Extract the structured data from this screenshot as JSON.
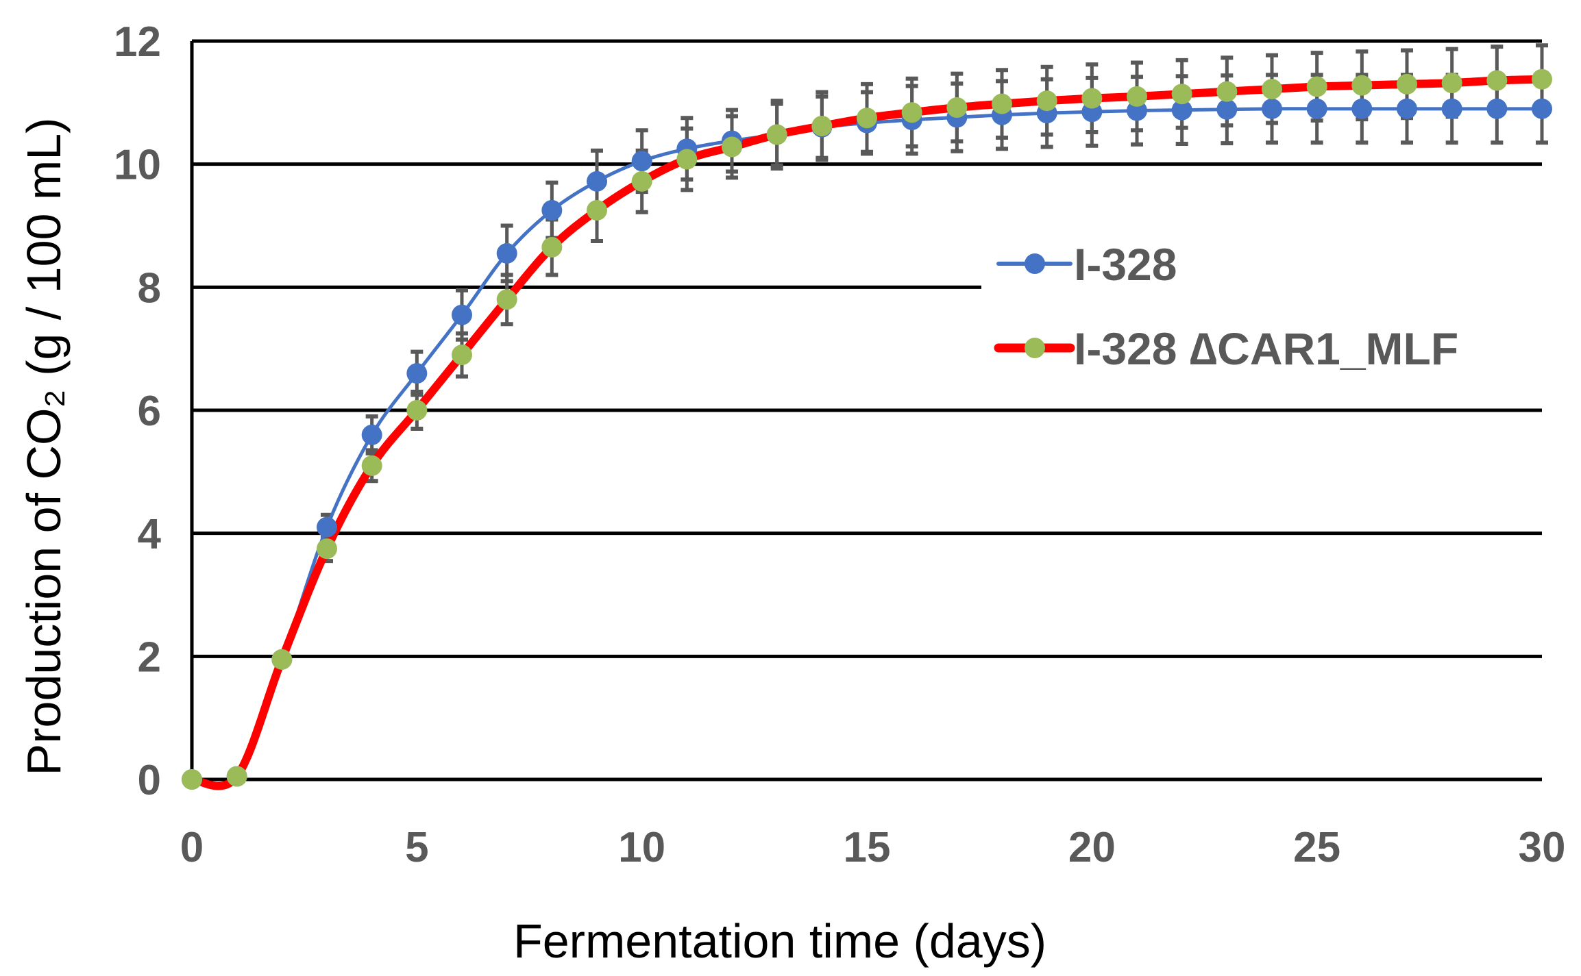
{
  "chart_data": {
    "type": "line",
    "title": "",
    "xlabel": "Fermentation time (days)",
    "ylabel": "Production of CO₂ (g / 100 mL)",
    "xlim": [
      0,
      30
    ],
    "ylim": [
      0,
      12
    ],
    "xticks": [
      0,
      5,
      10,
      15,
      20,
      25,
      30
    ],
    "yticks": [
      0,
      2,
      4,
      6,
      8,
      10,
      12
    ],
    "xtick_labels": [
      "0",
      "5",
      "10",
      "15",
      "20",
      "25",
      "30"
    ],
    "ytick_labels": [
      "0",
      "2",
      "4",
      "6",
      "8",
      "10",
      "12"
    ],
    "grid": "horizontal",
    "legend_position": "center-right",
    "x": [
      0,
      1,
      2,
      3,
      4,
      5,
      6,
      7,
      8,
      9,
      10,
      11,
      12,
      13,
      14,
      15,
      16,
      17,
      18,
      19,
      20,
      21,
      22,
      23,
      24,
      25,
      26,
      27,
      28,
      29,
      30
    ],
    "series": [
      {
        "name": "I-328",
        "color": "#4472c4",
        "marker_color": "#4472c4",
        "values": [
          0,
          0.05,
          1.95,
          4.1,
          5.6,
          6.6,
          7.55,
          8.55,
          9.25,
          9.72,
          10.05,
          10.25,
          10.38,
          10.48,
          10.6,
          10.67,
          10.72,
          10.76,
          10.8,
          10.83,
          10.85,
          10.87,
          10.88,
          10.89,
          10.9,
          10.9,
          10.9,
          10.9,
          10.9,
          10.9,
          10.9
        ],
        "errors": [
          0,
          0,
          0.05,
          0.2,
          0.3,
          0.35,
          0.4,
          0.45,
          0.45,
          0.5,
          0.5,
          0.5,
          0.5,
          0.5,
          0.5,
          0.5,
          0.55,
          0.55,
          0.55,
          0.55,
          0.55,
          0.55,
          0.55,
          0.55,
          0.55,
          0.55,
          0.55,
          0.55,
          0.55,
          0.55,
          0.55
        ]
      },
      {
        "name": "I-328 ∆CAR1_MLF",
        "color": "#ff0000",
        "marker_color": "#9bbb59",
        "values": [
          0,
          0.05,
          1.95,
          3.75,
          5.1,
          6.0,
          6.9,
          7.8,
          8.65,
          9.25,
          9.72,
          10.08,
          10.28,
          10.48,
          10.62,
          10.75,
          10.84,
          10.92,
          10.98,
          11.03,
          11.07,
          11.1,
          11.14,
          11.18,
          11.22,
          11.26,
          11.28,
          11.3,
          11.32,
          11.36,
          11.38
        ],
        "errors": [
          0,
          0,
          0.05,
          0.2,
          0.25,
          0.3,
          0.35,
          0.4,
          0.45,
          0.5,
          0.5,
          0.5,
          0.5,
          0.55,
          0.55,
          0.55,
          0.55,
          0.55,
          0.55,
          0.55,
          0.55,
          0.55,
          0.55,
          0.55,
          0.55,
          0.55,
          0.55,
          0.55,
          0.55,
          0.55,
          0.55
        ]
      }
    ]
  }
}
